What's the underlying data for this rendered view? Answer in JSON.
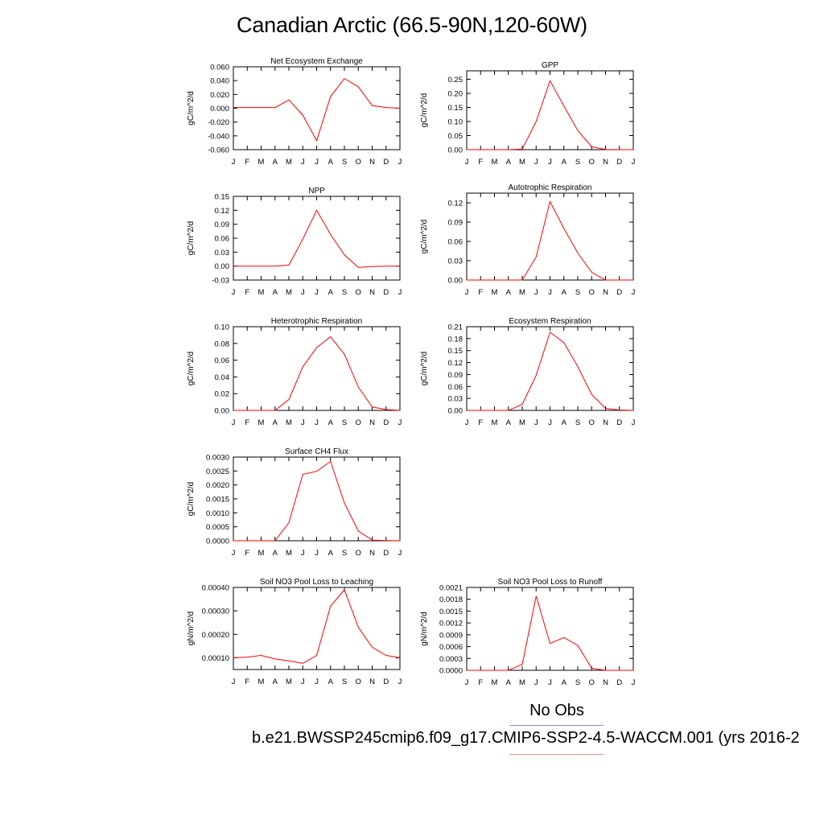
{
  "page": {
    "title": "Canadian Arctic (66.5-90N,120-60W)"
  },
  "legend": {
    "obs_label": "No Obs",
    "run_label": "b.e21.BWSSP245cmip6.f09_g17.CMIP6-SSP2-4.5-WACCM.001 (yrs 2016-2",
    "obs_color": "#8a8af0",
    "model_color": "#f08a8a"
  },
  "chart_data": [
    {
      "type": "line",
      "title": "Net Ecosystem Exchange",
      "ylabel": "gC/m^2/d",
      "x": [
        "J",
        "F",
        "M",
        "A",
        "M",
        "J",
        "J",
        "A",
        "S",
        "O",
        "N",
        "D",
        "J"
      ],
      "ylim": [
        -0.06,
        0.06
      ],
      "yticks": [
        "0.060",
        "0.040",
        "0.020",
        "0.000",
        "-0.020",
        "-0.040",
        "-0.060"
      ],
      "series": [
        {
          "color": "#ff0000",
          "values": [
            0.001,
            0.001,
            0.001,
            0.001,
            0.012,
            -0.01,
            -0.047,
            0.017,
            0.043,
            0.031,
            0.004,
            0.001,
            0.0
          ]
        }
      ]
    },
    {
      "type": "line",
      "title": "GPP",
      "ylabel": "gC/m^2/d",
      "x": [
        "J",
        "F",
        "M",
        "A",
        "M",
        "J",
        "J",
        "A",
        "S",
        "O",
        "N",
        "D",
        "J"
      ],
      "ylim": [
        0,
        0.28
      ],
      "yticks": [
        "0.25",
        "0.20",
        "0.15",
        "0.10",
        "0.05",
        "0.00"
      ],
      "series": [
        {
          "color": "#ff0000",
          "values": [
            0.0,
            0.0,
            0.0,
            0.0,
            0.002,
            0.1,
            0.245,
            0.155,
            0.068,
            0.01,
            0.001,
            0.0,
            0.0
          ]
        }
      ]
    },
    {
      "type": "line",
      "title": "NPP",
      "ylabel": "gC/m^2/d",
      "x": [
        "J",
        "F",
        "M",
        "A",
        "M",
        "J",
        "J",
        "A",
        "S",
        "O",
        "N",
        "D",
        "J"
      ],
      "ylim": [
        -0.03,
        0.15
      ],
      "yticks": [
        "0.15",
        "0.12",
        "0.09",
        "0.06",
        "0.03",
        "0.00",
        "-0.03"
      ],
      "series": [
        {
          "color": "#ff0000",
          "values": [
            0.0,
            0.0,
            0.0,
            0.0,
            0.002,
            0.058,
            0.12,
            0.068,
            0.024,
            -0.003,
            -0.001,
            0.0,
            0.0
          ]
        }
      ]
    },
    {
      "type": "line",
      "title": "Autotrophic Respiration",
      "ylabel": "gC/m^2/d",
      "x": [
        "J",
        "F",
        "M",
        "A",
        "M",
        "J",
        "J",
        "A",
        "S",
        "O",
        "N",
        "D",
        "J"
      ],
      "ylim": [
        0,
        0.135
      ],
      "yticks": [
        "0.12",
        "0.09",
        "0.06",
        "0.03",
        "0.00"
      ],
      "series": [
        {
          "color": "#ff0000",
          "values": [
            0.0,
            0.0,
            0.0,
            0.0,
            0.0,
            0.036,
            0.122,
            0.08,
            0.042,
            0.012,
            0.0,
            0.0,
            0.0
          ]
        }
      ]
    },
    {
      "type": "line",
      "title": "Heterotrophic Respiration",
      "ylabel": "gC/m^2/d",
      "x": [
        "J",
        "F",
        "M",
        "A",
        "M",
        "J",
        "J",
        "A",
        "S",
        "O",
        "N",
        "D",
        "J"
      ],
      "ylim": [
        0,
        0.1
      ],
      "yticks": [
        "0.10",
        "0.08",
        "0.06",
        "0.04",
        "0.02",
        "0.00"
      ],
      "series": [
        {
          "color": "#ff0000",
          "values": [
            0.0,
            0.0,
            0.0,
            0.0,
            0.013,
            0.052,
            0.075,
            0.088,
            0.067,
            0.028,
            0.004,
            0.001,
            0.0
          ]
        }
      ]
    },
    {
      "type": "line",
      "title": "Ecosystem Respiration",
      "ylabel": "gC/m^2/d",
      "x": [
        "J",
        "F",
        "M",
        "A",
        "M",
        "J",
        "J",
        "A",
        "S",
        "O",
        "N",
        "D",
        "J"
      ],
      "ylim": [
        0,
        0.21
      ],
      "yticks": [
        "0.21",
        "0.18",
        "0.15",
        "0.12",
        "0.09",
        "0.06",
        "0.03",
        "0.00"
      ],
      "series": [
        {
          "color": "#ff0000",
          "values": [
            0.0,
            0.0,
            0.0,
            0.0,
            0.015,
            0.088,
            0.196,
            0.17,
            0.11,
            0.04,
            0.005,
            0.001,
            0.0
          ]
        }
      ]
    },
    {
      "type": "line",
      "title": "Surface CH4 Flux",
      "ylabel": "gC/m^2/d",
      "x": [
        "J",
        "F",
        "M",
        "A",
        "M",
        "J",
        "J",
        "A",
        "S",
        "O",
        "N",
        "D",
        "J"
      ],
      "ylim": [
        0,
        0.003
      ],
      "yticks": [
        "0.0030",
        "0.0025",
        "0.0020",
        "0.0015",
        "0.0010",
        "0.0005",
        "0.0000"
      ],
      "series": [
        {
          "color": "#ff0000",
          "values": [
            0.0,
            0.0,
            0.0,
            0.0,
            0.00065,
            0.00238,
            0.00249,
            0.00284,
            0.00135,
            0.00035,
            2e-05,
            1e-05,
            0.0
          ]
        }
      ]
    },
    {
      "type": "line",
      "title": "Soil NO3 Pool Loss to Leaching",
      "ylabel": "gN/m^2/d",
      "x": [
        "J",
        "F",
        "M",
        "A",
        "M",
        "J",
        "J",
        "A",
        "S",
        "O",
        "N",
        "D",
        "J"
      ],
      "ylim": [
        5e-05,
        0.0004
      ],
      "yticks": [
        "0.00040",
        "0.00030",
        "0.00020",
        "0.00010"
      ],
      "series": [
        {
          "color": "#ff0000",
          "values": [
            0.0001,
            0.000103,
            0.00011,
            9.5e-05,
            8.7e-05,
            7.6e-05,
            0.00011,
            0.00032,
            0.00039,
            0.00023,
            0.000145,
            0.00011,
            0.0001
          ]
        }
      ]
    },
    {
      "type": "line",
      "title": "Soil NO3 Pool Loss to Runoff",
      "ylabel": "gN/m^2/d",
      "x": [
        "J",
        "F",
        "M",
        "A",
        "M",
        "J",
        "J",
        "A",
        "S",
        "O",
        "N",
        "D",
        "J"
      ],
      "ylim": [
        0,
        0.0021
      ],
      "yticks": [
        "0.0021",
        "0.0018",
        "0.0015",
        "0.0012",
        "0.0009",
        "0.0006",
        "0.0003",
        "0.0000"
      ],
      "series": [
        {
          "color": "#ff0000",
          "values": [
            0.0,
            0.0,
            0.0,
            0.0,
            0.00015,
            0.00188,
            0.00068,
            0.00083,
            0.00063,
            5e-05,
            0.0,
            0.0,
            0.0
          ]
        }
      ]
    }
  ]
}
